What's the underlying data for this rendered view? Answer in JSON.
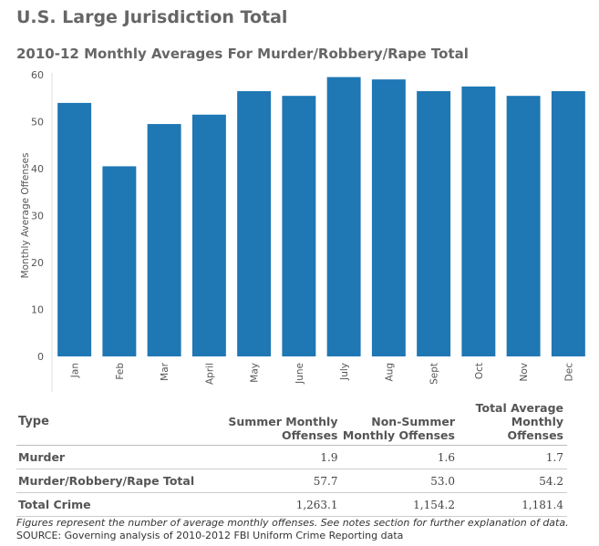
{
  "header": {
    "title": "U.S. Large Jurisdiction Total",
    "subtitle": "2010-12 Monthly Averages For Murder/Robbery/Rape Total"
  },
  "chart_data": {
    "type": "bar",
    "categories": [
      "Jan",
      "Feb",
      "Mar",
      "April",
      "May",
      "June",
      "July",
      "Aug",
      "Sept",
      "Oct",
      "Nov",
      "Dec"
    ],
    "values": [
      54,
      40.5,
      49.5,
      51.5,
      56.5,
      55.5,
      59.5,
      59,
      56.5,
      57.5,
      55.5,
      56.5
    ],
    "ylabel": "Monthly Average Offenses",
    "xlabel": "",
    "ylim": [
      0,
      60
    ],
    "yticks": [
      0,
      10,
      20,
      30,
      40,
      50,
      60
    ],
    "bar_color": "#1f77b4",
    "grid": false
  },
  "table": {
    "headers": {
      "type": "Type",
      "summer": [
        "Summer Monthly",
        "Offenses"
      ],
      "nonsummer": [
        "Non-Summer",
        "Monthly Offenses"
      ],
      "total": [
        "Total Average",
        "Monthly Offenses"
      ]
    },
    "rows": [
      {
        "type": "Murder",
        "summer": "1.9",
        "nonsummer": "1.6",
        "total": "1.7"
      },
      {
        "type": "Murder/Robbery/Rape Total",
        "summer": "57.7",
        "nonsummer": "53.0",
        "total": "54.2"
      },
      {
        "type": "Total Crime",
        "summer": "1,263.1",
        "nonsummer": "1,154.2",
        "total": "1,181.4"
      }
    ]
  },
  "notes": {
    "figures": "Figures represent the number of average monthly offenses. See notes section for further explanation of data.",
    "source": "SOURCE: Governing analysis of 2010-2012 FBI Uniform Crime Reporting data"
  }
}
